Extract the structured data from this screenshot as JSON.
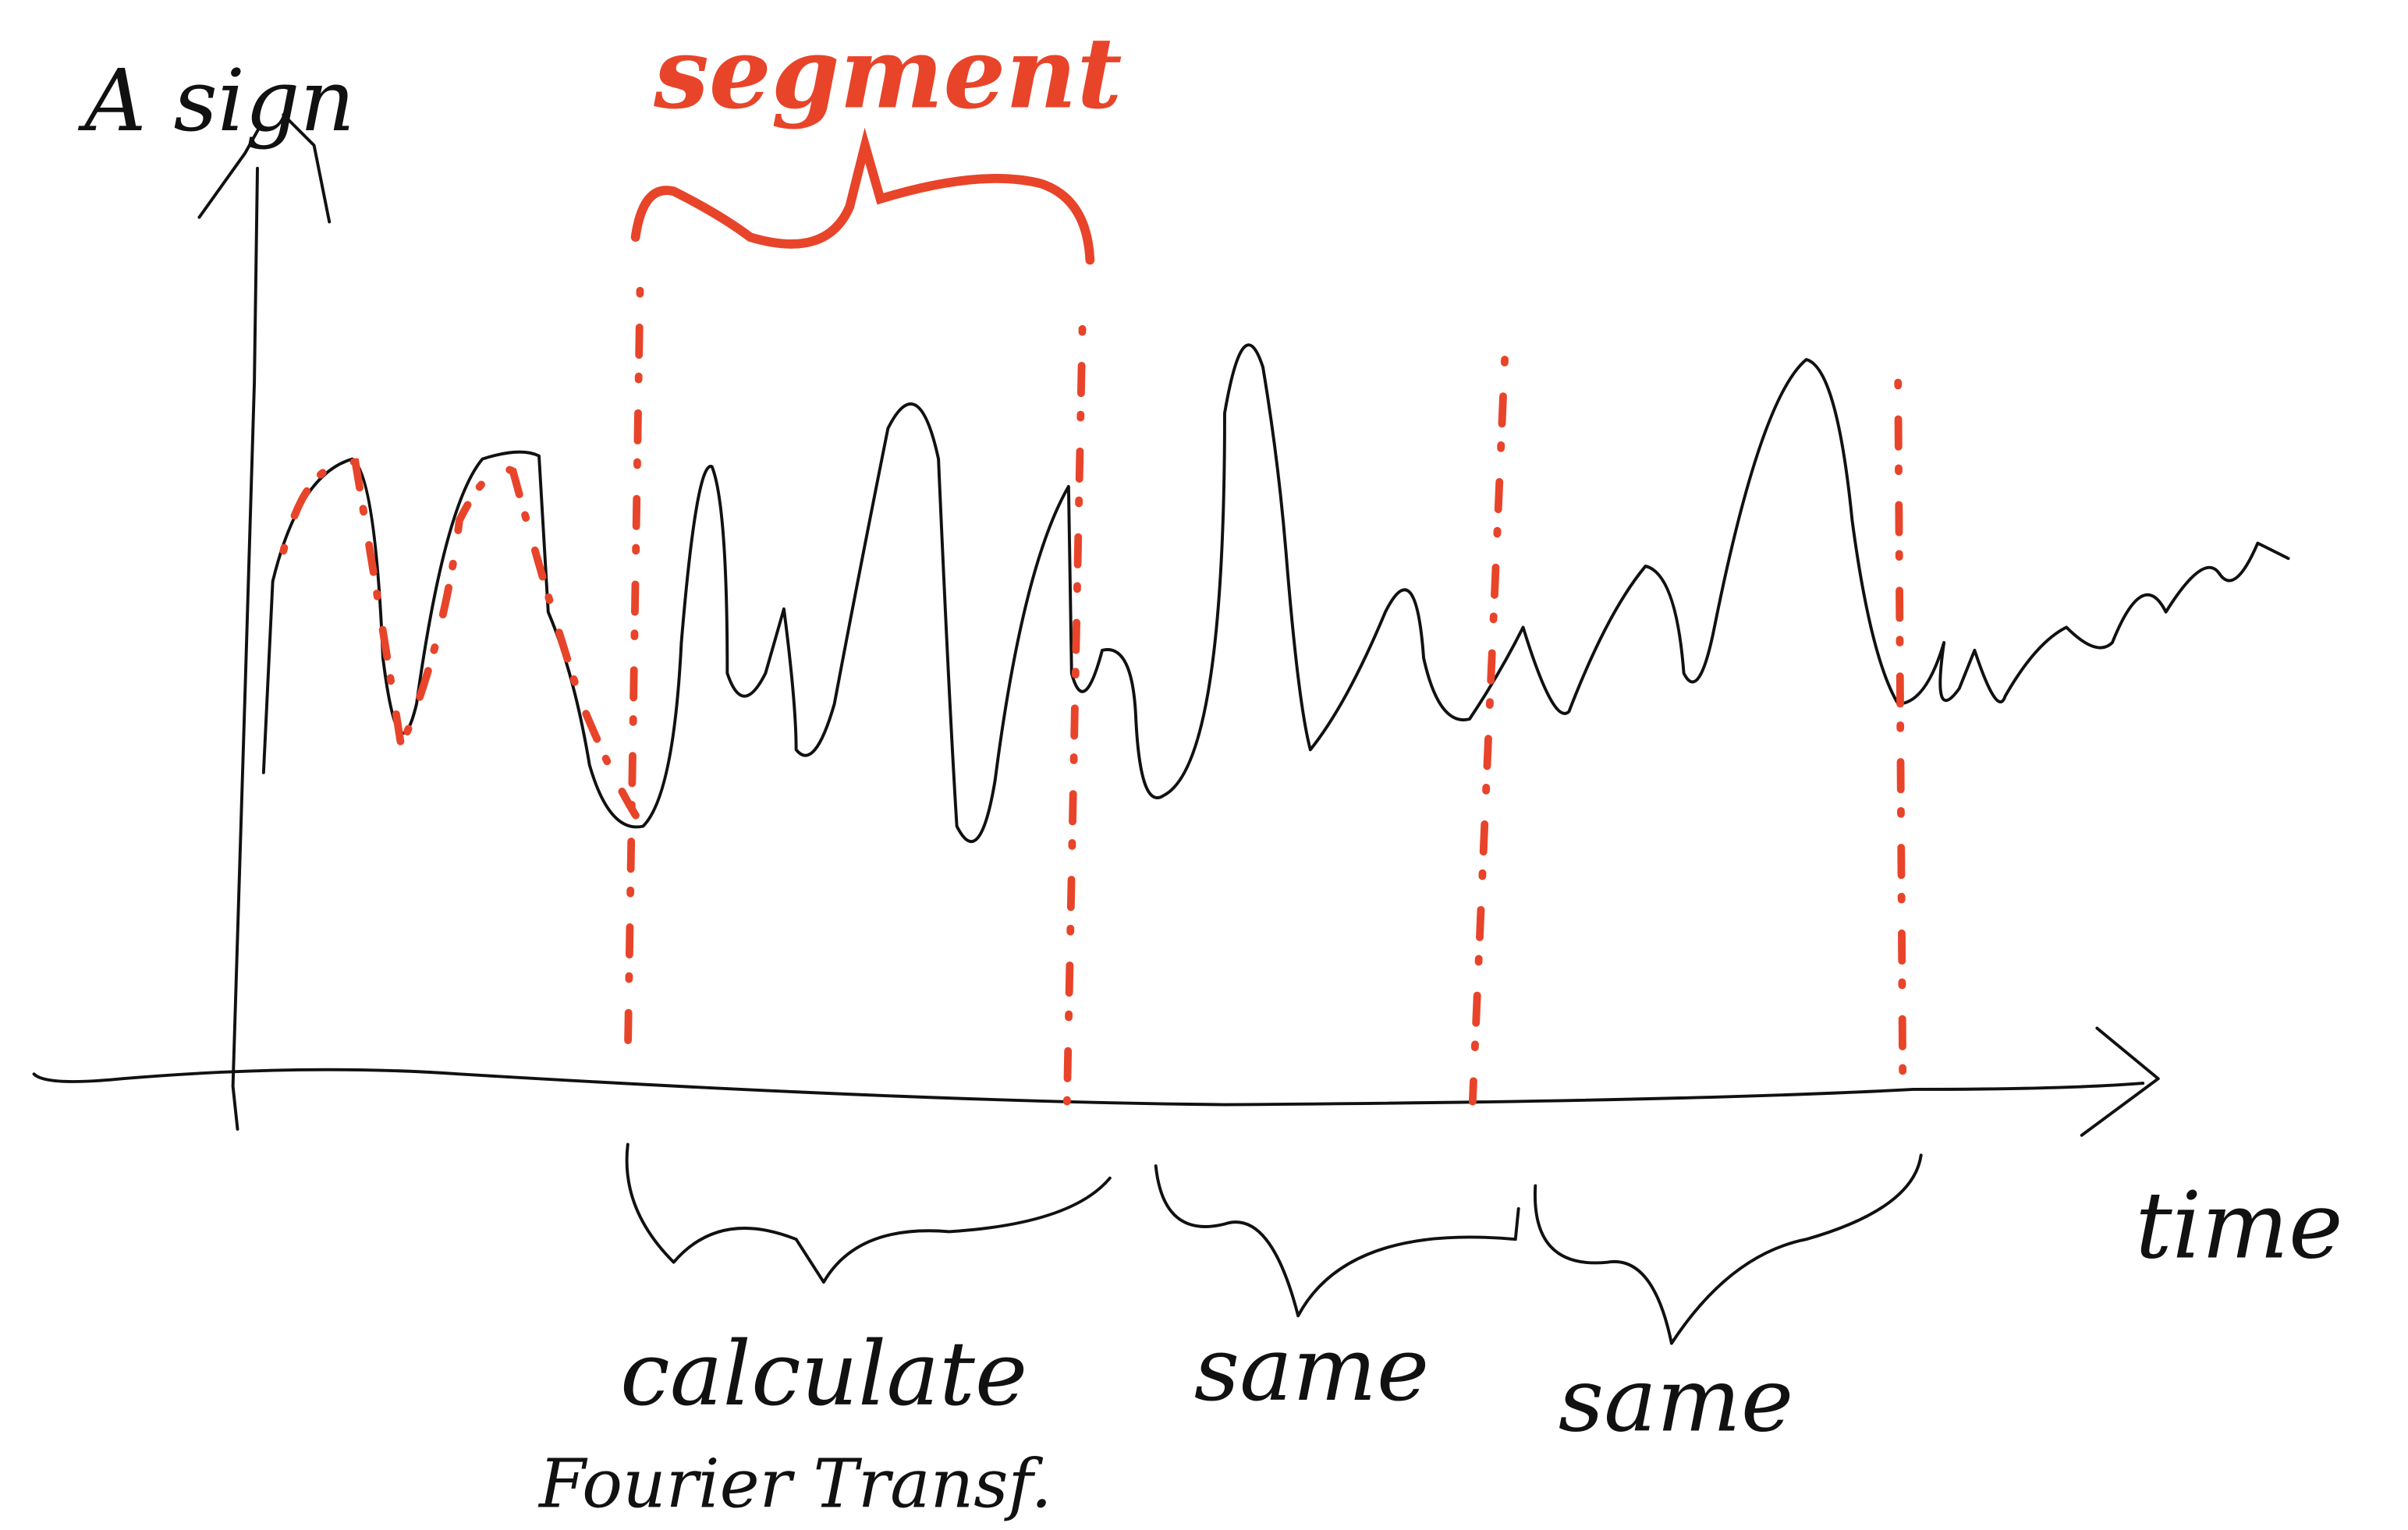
{
  "axis_labels": {
    "y": "A sign",
    "x": "time"
  },
  "segment_label": "segment",
  "brace_labels": [
    {
      "label": "calculate",
      "sublabel": "Fourier Transf."
    },
    {
      "label": "same"
    },
    {
      "label": "same"
    }
  ]
}
